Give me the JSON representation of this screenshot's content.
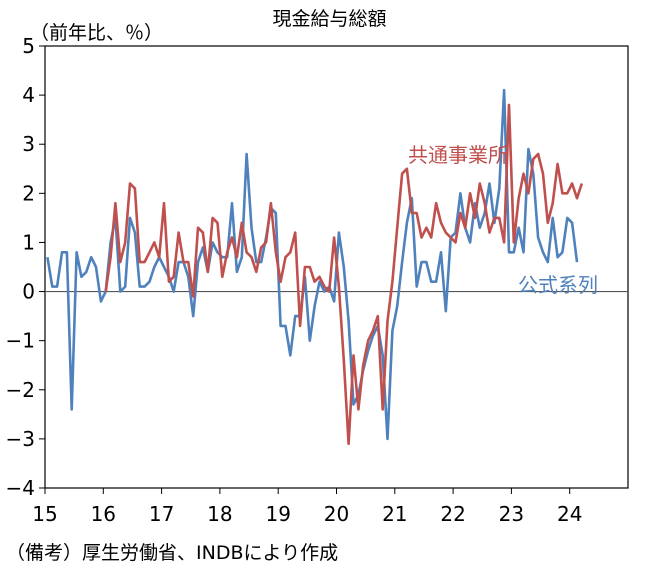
{
  "chart_data": {
    "type": "line",
    "title": "現金給与総額",
    "unit_label": "（前年比、％）",
    "source": "（備考）厚生労働省、INDBにより作成",
    "x_tick_labels": [
      "15",
      "16",
      "17",
      "18",
      "19",
      "20",
      "21",
      "22",
      "23",
      "24"
    ],
    "y_tick_labels": [
      "5",
      "4",
      "3",
      "2",
      "1",
      "0",
      "−1",
      "−2",
      "−3",
      "−4"
    ],
    "ylim": [
      -4,
      5
    ],
    "x_start_year": 2015,
    "grid": false,
    "zero_line": true,
    "series": [
      {
        "name": "共通事業所",
        "color": "#c0504d",
        "start_index": 12,
        "values": [
          0.0,
          0.7,
          1.8,
          0.6,
          1.0,
          2.2,
          2.1,
          0.6,
          0.6,
          0.8,
          1.0,
          0.7,
          1.8,
          0.2,
          0.3,
          1.2,
          0.6,
          0.6,
          -0.1,
          1.3,
          1.2,
          0.4,
          1.5,
          1.4,
          0.3,
          0.8,
          1.1,
          0.7,
          1.4,
          0.8,
          0.7,
          0.4,
          0.9,
          1.0,
          1.8,
          0.8,
          0.2,
          0.7,
          0.8,
          1.2,
          -0.7,
          0.5,
          0.5,
          0.2,
          0.3,
          0.1,
          0.0,
          1.1,
          0.1,
          -1.4,
          -3.1,
          -1.3,
          -2.4,
          -1.5,
          -1.0,
          -0.8,
          -0.5,
          -2.4,
          -0.6,
          0.2,
          1.3,
          2.4,
          2.5,
          1.6,
          1.6,
          1.1,
          1.3,
          1.1,
          1.8,
          1.4,
          1.2,
          1.1,
          1.0,
          1.6,
          1.3,
          2.0,
          1.5,
          2.2,
          1.8,
          1.2,
          1.5,
          1.5,
          1.0,
          3.8,
          1.0,
          1.9,
          2.4,
          2.0,
          2.7,
          2.8,
          2.4,
          1.4,
          1.8,
          2.6,
          2.0,
          2.0,
          2.2,
          1.9,
          2.2
        ]
      },
      {
        "name": "公式系列",
        "color": "#4f81bd",
        "start_index": 0,
        "values": [
          0.7,
          0.1,
          0.1,
          0.8,
          0.8,
          -2.4,
          0.8,
          0.3,
          0.4,
          0.7,
          0.5,
          -0.2,
          0.0,
          1.0,
          1.5,
          0.0,
          0.1,
          1.5,
          1.2,
          0.1,
          0.1,
          0.2,
          0.5,
          0.7,
          0.5,
          0.3,
          0.0,
          0.6,
          0.6,
          0.3,
          -0.5,
          0.6,
          0.9,
          0.4,
          1.0,
          0.8,
          0.7,
          0.7,
          1.8,
          0.4,
          0.7,
          2.8,
          1.3,
          0.6,
          0.6,
          1.1,
          1.7,
          1.6,
          -0.7,
          -0.7,
          -1.3,
          -0.5,
          -0.5,
          0.3,
          -1.0,
          -0.3,
          0.2,
          0.0,
          0.1,
          -0.2,
          1.2,
          0.5,
          -0.6,
          -2.3,
          -2.1,
          -1.6,
          -1.2,
          -0.9,
          -0.7,
          -1.3,
          -3.0,
          -0.8,
          -0.3,
          0.6,
          1.4,
          1.9,
          0.1,
          0.6,
          0.6,
          0.2,
          0.2,
          0.8,
          -0.4,
          1.1,
          1.2,
          2.0,
          1.3,
          1.0,
          1.8,
          1.3,
          1.6,
          2.2,
          1.4,
          2.1,
          4.1,
          0.8,
          0.8,
          1.3,
          0.8,
          2.9,
          2.4,
          1.1,
          0.8,
          0.6,
          1.5,
          0.7,
          0.8,
          1.5,
          1.4,
          0.6
        ]
      }
    ]
  }
}
